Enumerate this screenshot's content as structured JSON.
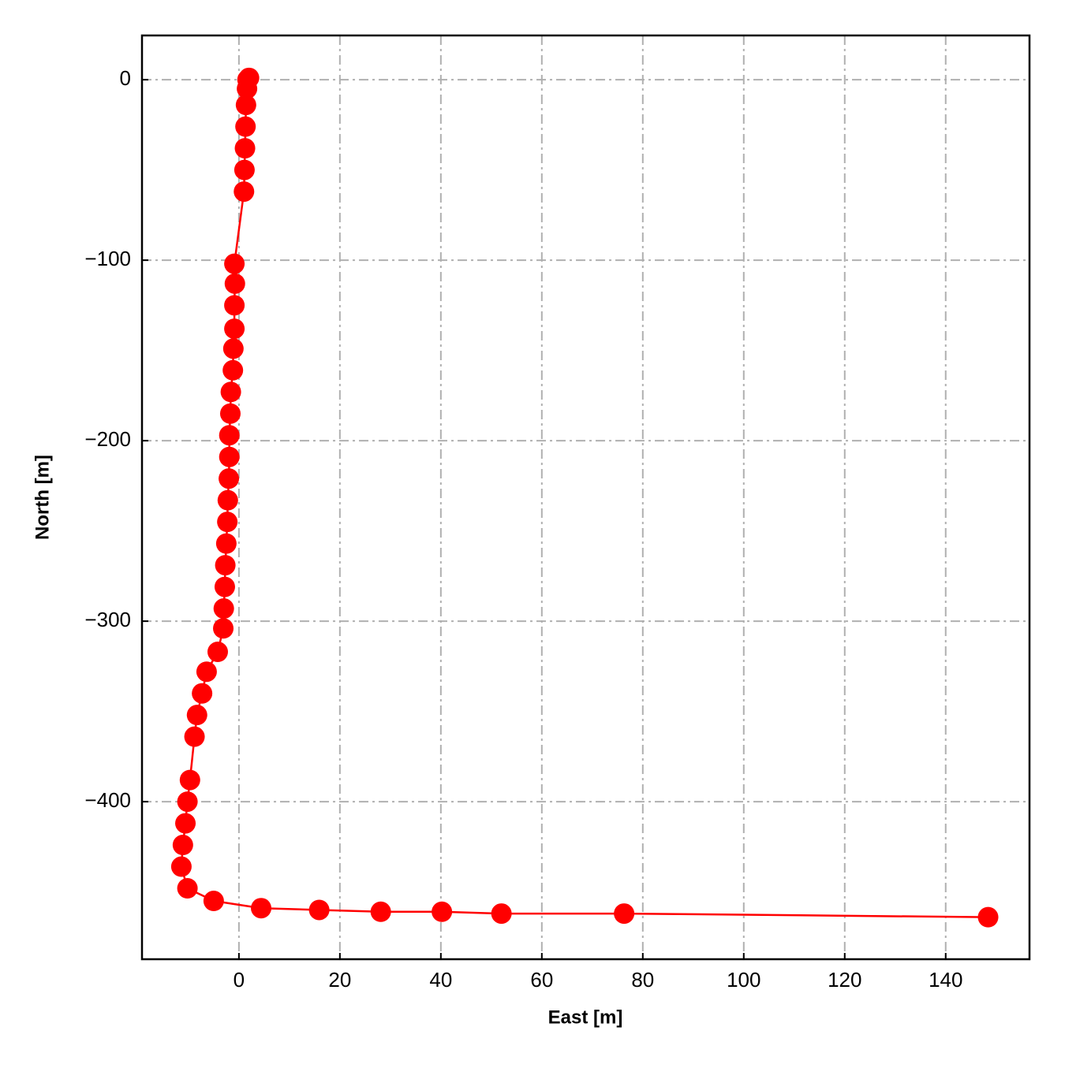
{
  "chart_data": {
    "type": "line",
    "xlabel": "East [m]",
    "ylabel": "North [m]",
    "series": [
      {
        "color": "#ff0000",
        "x": [
          2.0,
          1.7,
          1.6,
          1.4,
          1.3,
          1.2,
          1.1,
          1.0,
          -0.9,
          -0.8,
          -0.9,
          -0.9,
          -1.1,
          -1.2,
          -1.6,
          -1.7,
          -1.9,
          -1.9,
          -2.0,
          -2.2,
          -2.3,
          -2.5,
          -2.7,
          -2.8,
          -3.0,
          -3.1,
          -4.2,
          -6.4,
          -7.3,
          -8.3,
          -8.8,
          -9.7,
          -10.2,
          -10.6,
          -11.1,
          -11.4,
          -10.2,
          -5.0,
          4.4,
          15.9,
          28.1,
          40.2,
          52.0,
          76.3,
          148.4
        ],
        "values": [
          1,
          0,
          -5,
          -14,
          -26,
          -38,
          -50,
          -62,
          -102,
          -113,
          -125,
          -138,
          -149,
          -161,
          -173,
          -185,
          -197,
          -209,
          -221,
          -233,
          -245,
          -257,
          -269,
          -281,
          -293,
          -304,
          -317,
          -328,
          -340,
          -352,
          -364,
          -388,
          -400,
          -412,
          -424,
          -436,
          -448,
          -455,
          -459,
          -460,
          -461,
          -461,
          -462,
          -462,
          -464
        ]
      }
    ],
    "xlim": [
      -19.2,
      156.6
    ],
    "ylim": [
      -487.3,
      24.5
    ],
    "xticks": [
      0,
      20,
      40,
      60,
      80,
      100,
      120,
      140
    ],
    "yticks": [
      {
        "value": -400,
        "label": "−400"
      },
      {
        "value": -300,
        "label": "−300"
      },
      {
        "value": -200,
        "label": "−200"
      },
      {
        "value": -100,
        "label": "−100"
      },
      0
    ],
    "grid": true
  }
}
